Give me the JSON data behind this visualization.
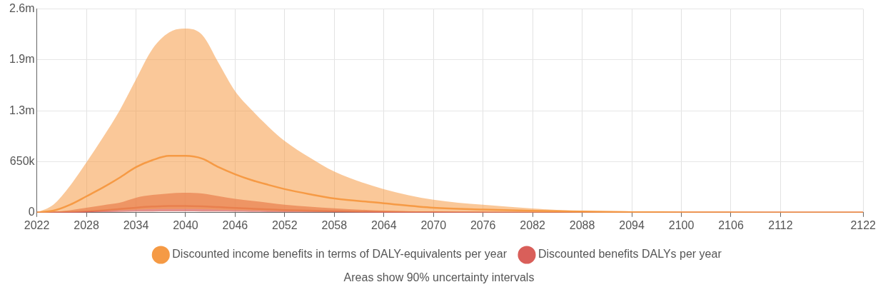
{
  "chart_data": {
    "type": "line",
    "x": [
      2022,
      2024,
      2026,
      2028,
      2030,
      2032,
      2034,
      2036,
      2038,
      2040,
      2042,
      2044,
      2046,
      2048,
      2050,
      2052,
      2055,
      2058,
      2064,
      2070,
      2076,
      2082,
      2088,
      2094,
      2100,
      2110,
      2122
    ],
    "series": [
      {
        "name": "Discounted income benefits in terms of DALY-equivalents per year",
        "color": "#f59a45",
        "values": [
          0,
          25000,
          100000,
          208000,
          320000,
          445000,
          580000,
          670000,
          725000,
          725000,
          690000,
          580000,
          490000,
          415000,
          355000,
          300000,
          235000,
          180000,
          120000,
          63000,
          40000,
          24000,
          13000,
          6000,
          3000,
          1000,
          0
        ],
        "lower": [
          0,
          2000,
          8000,
          15000,
          22000,
          30000,
          38000,
          43000,
          45000,
          45000,
          43000,
          38000,
          32000,
          27000,
          23000,
          19000,
          15000,
          11000,
          7000,
          4000,
          2000,
          1000,
          500,
          0,
          0,
          0,
          0
        ],
        "upper": [
          0,
          100000,
          340000,
          640000,
          960000,
          1300000,
          1700000,
          2090000,
          2300000,
          2350000,
          2270000,
          1910000,
          1550000,
          1310000,
          1100000,
          915000,
          705000,
          525000,
          300000,
          165000,
          100000,
          52000,
          18000,
          10000,
          5000,
          1000,
          0
        ]
      },
      {
        "name": "Discounted benefits DALYs per year",
        "color": "#d95f5a",
        "values": [
          0,
          2000,
          7000,
          15000,
          28000,
          45000,
          63000,
          77000,
          85000,
          85000,
          80000,
          70000,
          60000,
          50000,
          41000,
          33000,
          25000,
          18000,
          9000,
          4000,
          2000,
          1000,
          0,
          0,
          0,
          0,
          0
        ],
        "lower": [
          0,
          500,
          2000,
          4000,
          7000,
          10000,
          13000,
          15000,
          16000,
          16000,
          15000,
          13000,
          11000,
          9000,
          7000,
          6000,
          4000,
          3000,
          1000,
          500,
          0,
          0,
          0,
          0,
          0,
          0,
          0
        ],
        "upper": [
          0,
          10000,
          30000,
          62000,
          95000,
          125000,
          190000,
          225000,
          245000,
          253000,
          245000,
          210000,
          175000,
          150000,
          125000,
          100000,
          75000,
          55000,
          25000,
          12000,
          6000,
          3000,
          1000,
          0,
          0,
          0,
          0
        ]
      }
    ],
    "xlim": [
      2022,
      2122
    ],
    "xticks": [
      2022,
      2028,
      2034,
      2040,
      2046,
      2052,
      2058,
      2064,
      2070,
      2076,
      2082,
      2088,
      2094,
      2100,
      2106,
      2112,
      2122
    ],
    "ylim": [
      0,
      2600000
    ],
    "yticks": [
      0,
      {
        "value": 650000,
        "label": "650k"
      },
      {
        "value": 1300000,
        "label": "1.3m"
      },
      {
        "value": 1950000,
        "label": "1.9m"
      },
      {
        "value": 2600000,
        "label": "2.6m"
      }
    ],
    "grid": true,
    "legend": "bottom",
    "marker": "none",
    "line_style": "solid",
    "annotations": [
      "Areas show 90% uncertainty intervals"
    ]
  }
}
